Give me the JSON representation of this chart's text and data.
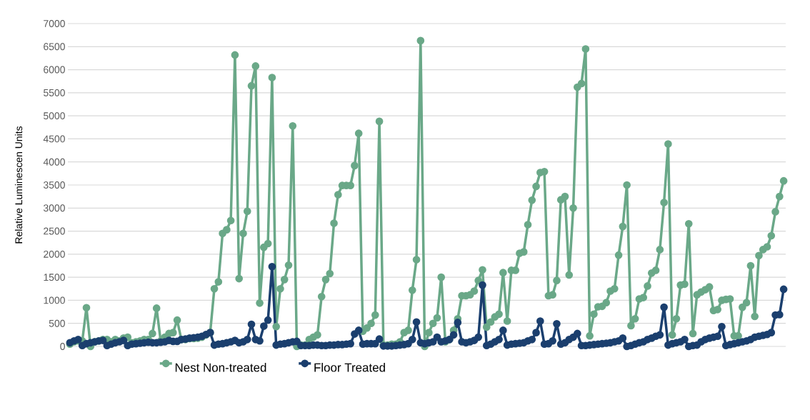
{
  "chart_data": {
    "type": "line",
    "ylabel": "Relative Luminescen Units",
    "categories": [
      null,
      null,
      null,
      null,
      null,
      null,
      null,
      null,
      null,
      null,
      null,
      null,
      null,
      null,
      null,
      null,
      null,
      null,
      null,
      null,
      null,
      null,
      null,
      null,
      null,
      null,
      null,
      null,
      null,
      null,
      null,
      null,
      null,
      null,
      null,
      null,
      null,
      null,
      null,
      null,
      null,
      null,
      null,
      null,
      null,
      null,
      null,
      null,
      null,
      null,
      null,
      null,
      null,
      null,
      null,
      null,
      null,
      null,
      null,
      null,
      null,
      null,
      null,
      null,
      null,
      null,
      null,
      null,
      null,
      null,
      null,
      null,
      null,
      null,
      null,
      null,
      null,
      null,
      null,
      null,
      null,
      null,
      null,
      null,
      null,
      null,
      null,
      null,
      null,
      null,
      null,
      null,
      null,
      null,
      null,
      null,
      null,
      null,
      null,
      null,
      null,
      null,
      null,
      null,
      null,
      null,
      null,
      null,
      null,
      null,
      null,
      null,
      null,
      null,
      null,
      null,
      null,
      null,
      null,
      null,
      null,
      null,
      null,
      null,
      null,
      null,
      null,
      null,
      null,
      null,
      null,
      null,
      null,
      null,
      null,
      null,
      null,
      null,
      null,
      null,
      null,
      null,
      null,
      null,
      null,
      null,
      null,
      null,
      null,
      null,
      null,
      null,
      null,
      null,
      null,
      null,
      null,
      null,
      null,
      null,
      null,
      null,
      null,
      null,
      null,
      null,
      null,
      null,
      null,
      null,
      null,
      null,
      null,
      null
    ],
    "series": [
      {
        "name": "Nest Non-treated",
        "color": "#6aa888",
        "values": [
          50,
          100,
          120,
          120,
          840,
          0,
          100,
          120,
          150,
          150,
          100,
          150,
          120,
          180,
          200,
          80,
          100,
          120,
          150,
          150,
          280,
          830,
          120,
          200,
          280,
          300,
          570,
          150,
          150,
          170,
          170,
          180,
          200,
          250,
          300,
          1250,
          1400,
          2450,
          2530,
          2730,
          6320,
          1470,
          2450,
          2930,
          5650,
          6080,
          940,
          2150,
          2230,
          5830,
          430,
          1250,
          1450,
          1760,
          4780,
          0,
          30,
          30,
          150,
          200,
          250,
          1080,
          1450,
          1580,
          2670,
          3290,
          3490,
          3490,
          3490,
          3920,
          4620,
          330,
          400,
          500,
          680,
          4880,
          30,
          30,
          50,
          50,
          100,
          300,
          350,
          1220,
          1880,
          6630,
          0,
          300,
          500,
          620,
          1500,
          100,
          150,
          350,
          600,
          1100,
          1100,
          1120,
          1200,
          1430,
          1660,
          420,
          530,
          640,
          700,
          1600,
          550,
          1650,
          1650,
          2020,
          2050,
          2640,
          3170,
          3470,
          3770,
          3790,
          1100,
          1120,
          1430,
          3180,
          3250,
          1550,
          3000,
          5620,
          5700,
          6450,
          230,
          700,
          860,
          870,
          950,
          1200,
          1250,
          1980,
          2600,
          3500,
          450,
          600,
          1030,
          1060,
          1310,
          1590,
          1650,
          2100,
          3120,
          4390,
          250,
          600,
          1330,
          1350,
          2660,
          280,
          1120,
          1180,
          1230,
          1290,
          780,
          800,
          1000,
          1020,
          1030,
          230,
          230,
          850,
          950,
          1750,
          650,
          1970,
          2100,
          2160,
          2400,
          2920,
          3250,
          3590
        ]
      },
      {
        "name": "Floor Treated",
        "color": "#1b3f6e",
        "values": [
          80,
          120,
          150,
          20,
          60,
          80,
          100,
          120,
          130,
          20,
          50,
          80,
          100,
          130,
          20,
          50,
          60,
          70,
          80,
          90,
          80,
          80,
          90,
          100,
          130,
          110,
          110,
          150,
          160,
          180,
          190,
          200,
          220,
          260,
          300,
          30,
          50,
          60,
          80,
          100,
          130,
          80,
          100,
          150,
          480,
          150,
          120,
          440,
          570,
          1730,
          30,
          50,
          60,
          80,
          100,
          110,
          20,
          20,
          20,
          30,
          30,
          20,
          20,
          30,
          30,
          40,
          40,
          50,
          60,
          270,
          350,
          50,
          60,
          60,
          60,
          160,
          10,
          10,
          10,
          20,
          30,
          40,
          60,
          150,
          530,
          80,
          60,
          80,
          100,
          200,
          100,
          120,
          150,
          250,
          520,
          100,
          80,
          100,
          130,
          200,
          1330,
          20,
          50,
          100,
          150,
          350,
          30,
          50,
          60,
          70,
          80,
          120,
          150,
          300,
          550,
          50,
          60,
          120,
          490,
          50,
          80,
          150,
          200,
          280,
          20,
          20,
          30,
          40,
          50,
          60,
          70,
          80,
          100,
          120,
          180,
          0,
          20,
          50,
          80,
          100,
          150,
          180,
          220,
          250,
          850,
          30,
          60,
          80,
          100,
          150,
          0,
          20,
          30,
          100,
          150,
          180,
          200,
          220,
          430,
          20,
          40,
          60,
          80,
          100,
          120,
          150,
          200,
          220,
          240,
          260,
          300,
          680,
          690,
          1240
        ]
      }
    ],
    "ylim": [
      0,
      7000
    ],
    "yticks": [
      0,
      500,
      1000,
      1500,
      2000,
      2500,
      3000,
      3500,
      4000,
      4500,
      5000,
      5500,
      6000,
      6500,
      7000
    ],
    "grid": "y",
    "legend": "bottom",
    "marker": "circle",
    "line_style": "solid"
  }
}
